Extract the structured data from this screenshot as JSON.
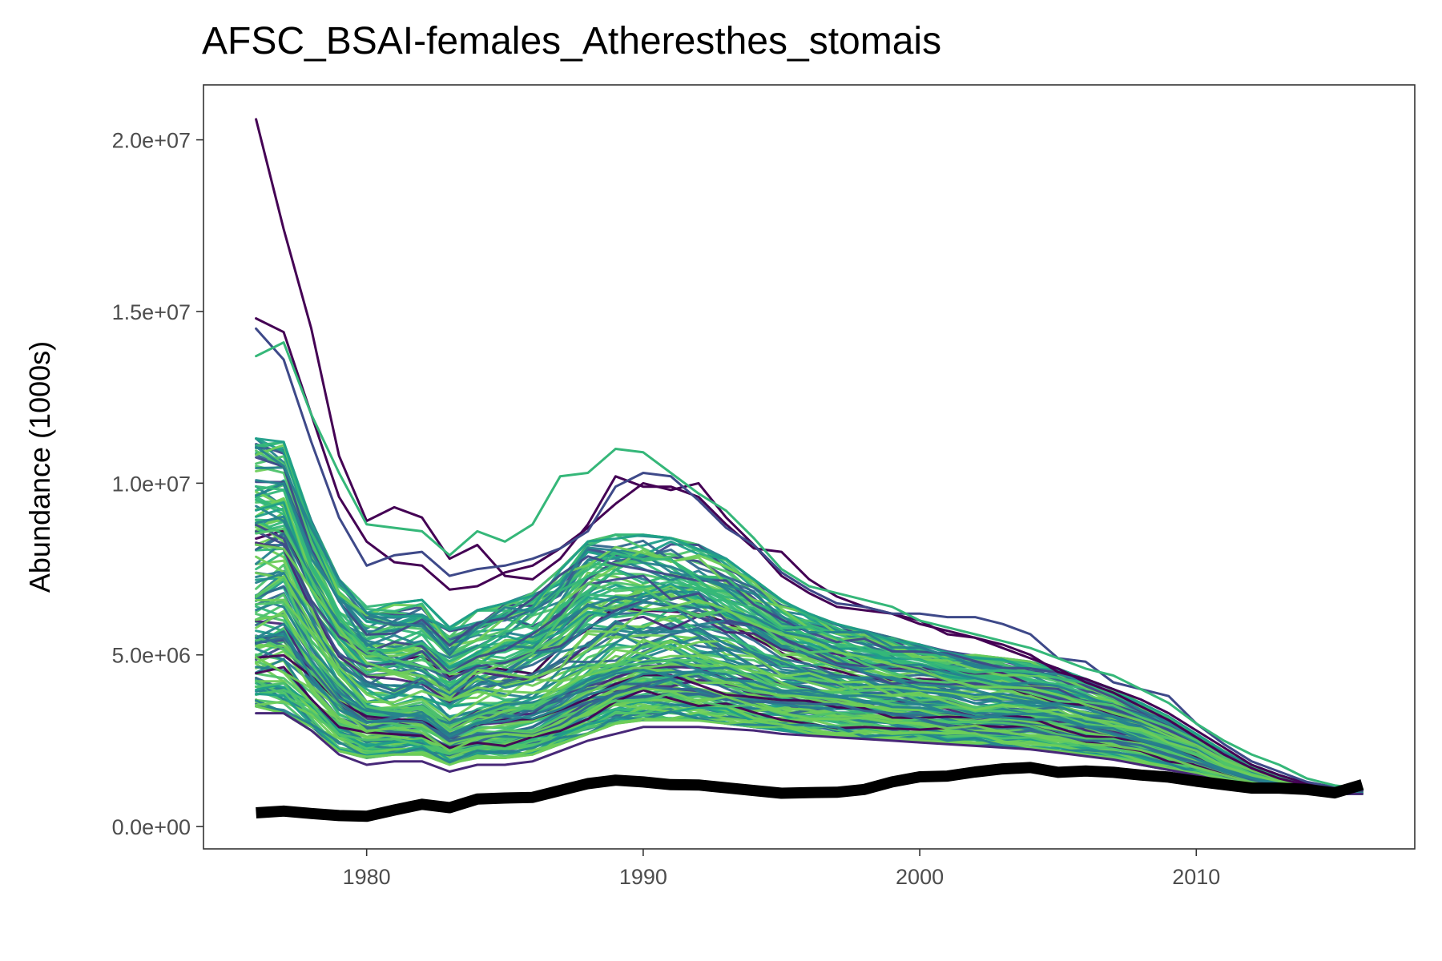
{
  "chart_data": {
    "type": "line",
    "title": "AFSC_BSAI-females_Atheresthes_stomais",
    "xlabel": "",
    "ylabel": "Abundance (1000s)",
    "xlim": [
      1974.1,
      2017.9
    ],
    "ylim": [
      -650000,
      21600000
    ],
    "x_ticks": [
      1980,
      1990,
      2000,
      2010
    ],
    "x_tick_labels": [
      "1980",
      "1990",
      "2000",
      "2010"
    ],
    "y_ticks": [
      0,
      5000000,
      10000000,
      15000000,
      20000000
    ],
    "y_tick_labels": [
      "0.0e+00",
      "5.0e+06",
      "1.0e+07",
      "1.5e+07",
      "2.0e+07"
    ],
    "grid": false,
    "legend": "none",
    "ensemble_palette": [
      "#440154",
      "#482878",
      "#3e4989",
      "#31688e",
      "#26828e",
      "#1f9e89",
      "#35b779",
      "#4ec36b",
      "#6ece58"
    ],
    "ensemble_count": 150,
    "ensemble_note_envelope": {
      "x": [
        1976,
        1977,
        1978,
        1979,
        1980,
        1981,
        1982,
        1983,
        1984,
        1985,
        1986,
        1987,
        1988,
        1989,
        1990,
        1991,
        1992,
        1993,
        1994,
        1995,
        1996,
        1997,
        1998,
        1999,
        2000,
        2001,
        2002,
        2003,
        2004,
        2005,
        2006,
        2007,
        2008,
        2009,
        2010,
        2011,
        2012,
        2013,
        2014,
        2015,
        2016
      ],
      "median": [
        6600000,
        6800000,
        5400000,
        4300000,
        3600000,
        3500000,
        3600000,
        3100000,
        3400000,
        3500000,
        3600000,
        4000000,
        4500000,
        4800000,
        5000000,
        5000000,
        4900000,
        4700000,
        4500000,
        4200000,
        4100000,
        4000000,
        3900000,
        3800000,
        3700000,
        3600000,
        3500000,
        3500000,
        3400000,
        3300000,
        3100000,
        3000000,
        2800000,
        2500000,
        2200000,
        1800000,
        1500000,
        1300000,
        1150000,
        1050000,
        1000000
      ],
      "high": [
        11300000,
        11200000,
        8900000,
        7200000,
        6400000,
        6500000,
        6600000,
        5800000,
        6300000,
        6500000,
        6800000,
        7500000,
        8300000,
        8500000,
        8500000,
        8400000,
        8200000,
        7800000,
        7200000,
        6600000,
        6200000,
        5900000,
        5700000,
        5500000,
        5300000,
        5100000,
        5000000,
        4900000,
        4800000,
        4600000,
        4300000,
        4000000,
        3600000,
        3200000,
        2700000,
        2200000,
        1800000,
        1500000,
        1250000,
        1120000,
        1050000
      ],
      "low": [
        3500000,
        3300000,
        2800000,
        2200000,
        2000000,
        2100000,
        2100000,
        1800000,
        2000000,
        2000000,
        2100000,
        2400000,
        2700000,
        3000000,
        3100000,
        3100000,
        3050000,
        3000000,
        2900000,
        2800000,
        2700000,
        2650000,
        2600000,
        2550000,
        2500000,
        2450000,
        2400000,
        2350000,
        2300000,
        2200000,
        2100000,
        2000000,
        1800000,
        1650000,
        1500000,
        1300000,
        1150000,
        1050000,
        1000000,
        950000,
        950000
      ]
    },
    "outlier_series": [
      {
        "color": "#440154",
        "values": [
          20600000,
          17400000,
          14500000,
          10800000,
          8900000,
          9300000,
          9000000,
          7800000,
          8200000,
          7300000,
          7200000,
          7800000,
          8800000,
          10200000,
          9900000,
          9900000,
          9600000,
          8800000,
          8100000,
          8000000,
          7200000,
          6700000,
          6400000,
          6200000,
          5900000,
          5700000,
          5500000,
          5200000,
          4900000,
          4600000,
          4200000,
          3900000,
          3500000,
          3100000,
          2600000,
          2100000,
          1700000,
          1400000,
          1200000,
          1100000,
          1050000
        ]
      },
      {
        "color": "#440154",
        "values": [
          14800000,
          14400000,
          12000000,
          9600000,
          8300000,
          7700000,
          7600000,
          6900000,
          7000000,
          7400000,
          7600000,
          8100000,
          8700000,
          9400000,
          10000000,
          9800000,
          10000000,
          9000000,
          8200000,
          7300000,
          6800000,
          6400000,
          6300000,
          6200000,
          6000000,
          5600000,
          5500000,
          5300000,
          5000000,
          4500000,
          4300000,
          4000000,
          3700000,
          3300000,
          2800000,
          2300000,
          1800000,
          1500000,
          1250000,
          1100000,
          1050000
        ]
      },
      {
        "color": "#3e4989",
        "values": [
          14500000,
          13600000,
          11200000,
          9000000,
          7600000,
          7900000,
          8000000,
          7300000,
          7500000,
          7600000,
          7800000,
          8100000,
          8600000,
          9900000,
          10300000,
          10200000,
          9500000,
          8700000,
          8200000,
          7400000,
          6900000,
          6500000,
          6400000,
          6200000,
          6200000,
          6100000,
          6100000,
          5900000,
          5600000,
          4900000,
          4800000,
          4200000,
          4000000,
          3800000,
          3000000,
          2400000,
          1900000,
          1600000,
          1300000,
          1150000,
          1050000
        ]
      },
      {
        "color": "#35b779",
        "values": [
          13700000,
          14100000,
          12000000,
          10300000,
          8800000,
          8700000,
          8600000,
          7900000,
          8600000,
          8300000,
          8800000,
          10200000,
          10300000,
          11000000,
          10900000,
          10300000,
          9700000,
          9200000,
          8400000,
          7500000,
          7000000,
          6800000,
          6600000,
          6400000,
          6000000,
          5800000,
          5600000,
          5400000,
          5200000,
          4900000,
          4600000,
          4400000,
          4000000,
          3600000,
          3000000,
          2500000,
          2100000,
          1800000,
          1400000,
          1200000,
          1100000
        ]
      },
      {
        "color": "#482878",
        "values": [
          3300000,
          3300000,
          2800000,
          2100000,
          1800000,
          1900000,
          1900000,
          1600000,
          1800000,
          1800000,
          1900000,
          2200000,
          2500000,
          2700000,
          2900000,
          2900000,
          2900000,
          2850000,
          2800000,
          2700000,
          2650000,
          2600000,
          2550000,
          2500000,
          2450000,
          2400000,
          2350000,
          2300000,
          2250000,
          2150000,
          2050000,
          1950000,
          1800000,
          1650000,
          1500000,
          1300000,
          1150000,
          1050000,
          1000000,
          950000,
          950000
        ]
      }
    ],
    "observed_series": {
      "color": "#000000",
      "x": [
        1976,
        1977,
        1978,
        1979,
        1980,
        1981,
        1982,
        1983,
        1984,
        1985,
        1986,
        1987,
        1988,
        1989,
        1990,
        1991,
        1992,
        1993,
        1994,
        1995,
        1996,
        1997,
        1998,
        1999,
        2000,
        2001,
        2002,
        2003,
        2004,
        2005,
        2006,
        2007,
        2008,
        2009,
        2010,
        2011,
        2012,
        2013,
        2014,
        2015,
        2016
      ],
      "values": [
        400000,
        450000,
        380000,
        320000,
        300000,
        480000,
        650000,
        550000,
        800000,
        830000,
        850000,
        1050000,
        1250000,
        1350000,
        1300000,
        1220000,
        1210000,
        1130000,
        1050000,
        970000,
        990000,
        1000000,
        1080000,
        1300000,
        1450000,
        1470000,
        1590000,
        1680000,
        1720000,
        1580000,
        1620000,
        1580000,
        1500000,
        1440000,
        1320000,
        1220000,
        1120000,
        1120000,
        1080000,
        980000,
        1220000
      ]
    }
  }
}
